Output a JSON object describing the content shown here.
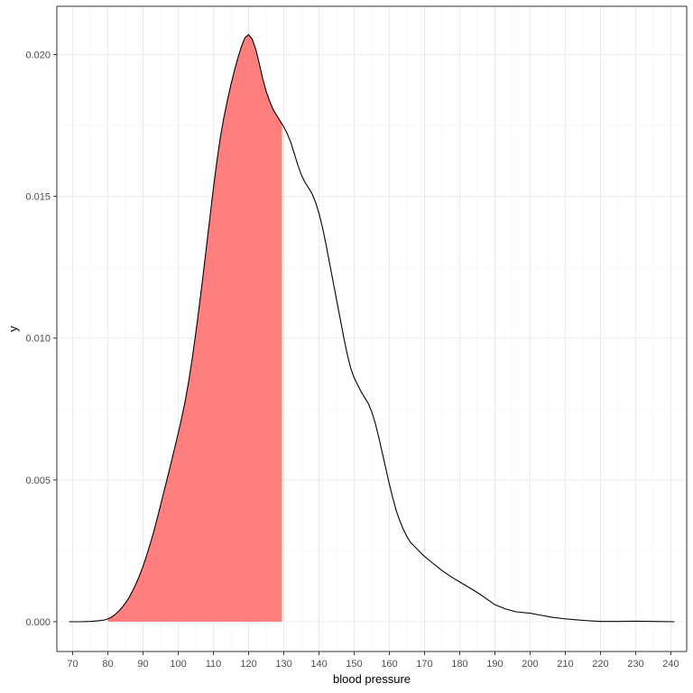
{
  "chart_data": {
    "type": "area",
    "xlabel": "blood pressure",
    "ylabel": "y",
    "xlim": [
      65.5,
      244.5
    ],
    "ylim": [
      -0.00105,
      0.0217
    ],
    "x_ticks": [
      70,
      80,
      90,
      100,
      110,
      120,
      130,
      140,
      150,
      160,
      170,
      180,
      190,
      200,
      210,
      220,
      230,
      240
    ],
    "y_ticks": [
      0.0,
      0.005,
      0.01,
      0.015,
      0.02
    ],
    "y_tick_labels": [
      "0.000",
      "0.005",
      "0.010",
      "0.015",
      "0.020"
    ],
    "grid": true,
    "shade_range": [
      80,
      129.5
    ],
    "colors": {
      "shade": "#ff7f7f",
      "line": "#000000",
      "grid": "#ebebeb",
      "panel_border": "#333333"
    },
    "series": [
      {
        "x": [
          69,
          72,
          75,
          77,
          79,
          80,
          81,
          82,
          83,
          84,
          85,
          86,
          87,
          88,
          89,
          90,
          91,
          92,
          93,
          94,
          95,
          96,
          97,
          98,
          99,
          100,
          101,
          102,
          103,
          104,
          105,
          106,
          107,
          108,
          109,
          110,
          111,
          112,
          113,
          114,
          115,
          116,
          117,
          118,
          119,
          120,
          121,
          122,
          123,
          124,
          125,
          126,
          127,
          128,
          129,
          130,
          131,
          132,
          133,
          134,
          135,
          136,
          137,
          138,
          139,
          140,
          141,
          142,
          143,
          144,
          145,
          146,
          147,
          148,
          149,
          150,
          151,
          152,
          153,
          154,
          155,
          156,
          157,
          158,
          159,
          160,
          161,
          162,
          163,
          164,
          165,
          166,
          168,
          170,
          172,
          175,
          178,
          180,
          183,
          186,
          190,
          193,
          196,
          200,
          203,
          206,
          210,
          213,
          216,
          220,
          225,
          230,
          235,
          241
        ],
        "y": [
          0.0,
          0.0,
          1e-05,
          3e-05,
          6e-05,
          0.0001,
          0.00016,
          0.00025,
          0.00036,
          0.0005,
          0.00066,
          0.00085,
          0.00108,
          0.00134,
          0.00163,
          0.00196,
          0.00233,
          0.00273,
          0.00316,
          0.00363,
          0.00412,
          0.00462,
          0.00512,
          0.00562,
          0.00613,
          0.00665,
          0.0072,
          0.0078,
          0.0085,
          0.0093,
          0.0102,
          0.01115,
          0.01215,
          0.0132,
          0.01425,
          0.0153,
          0.01625,
          0.0171,
          0.0178,
          0.0184,
          0.01895,
          0.01945,
          0.0199,
          0.0203,
          0.0206,
          0.0207,
          0.02055,
          0.0202,
          0.0197,
          0.01915,
          0.0187,
          0.01835,
          0.01805,
          0.01785,
          0.01765,
          0.01745,
          0.0172,
          0.0169,
          0.0165,
          0.0161,
          0.01575,
          0.0155,
          0.0153,
          0.0151,
          0.0148,
          0.0144,
          0.0139,
          0.0133,
          0.01265,
          0.012,
          0.01135,
          0.0107,
          0.01005,
          0.00945,
          0.00895,
          0.0086,
          0.00835,
          0.0081,
          0.0079,
          0.0077,
          0.0074,
          0.007,
          0.0065,
          0.00595,
          0.0054,
          0.00485,
          0.00435,
          0.0039,
          0.00355,
          0.00325,
          0.003,
          0.0028,
          0.00255,
          0.0023,
          0.0021,
          0.0018,
          0.00155,
          0.0014,
          0.00118,
          0.00095,
          0.0006,
          0.00045,
          0.00035,
          0.0003,
          0.00023,
          0.00016,
          0.0001,
          7e-05,
          4e-05,
          1e-05,
          1e-05,
          2e-05,
          1e-05,
          0.0
        ]
      }
    ]
  }
}
